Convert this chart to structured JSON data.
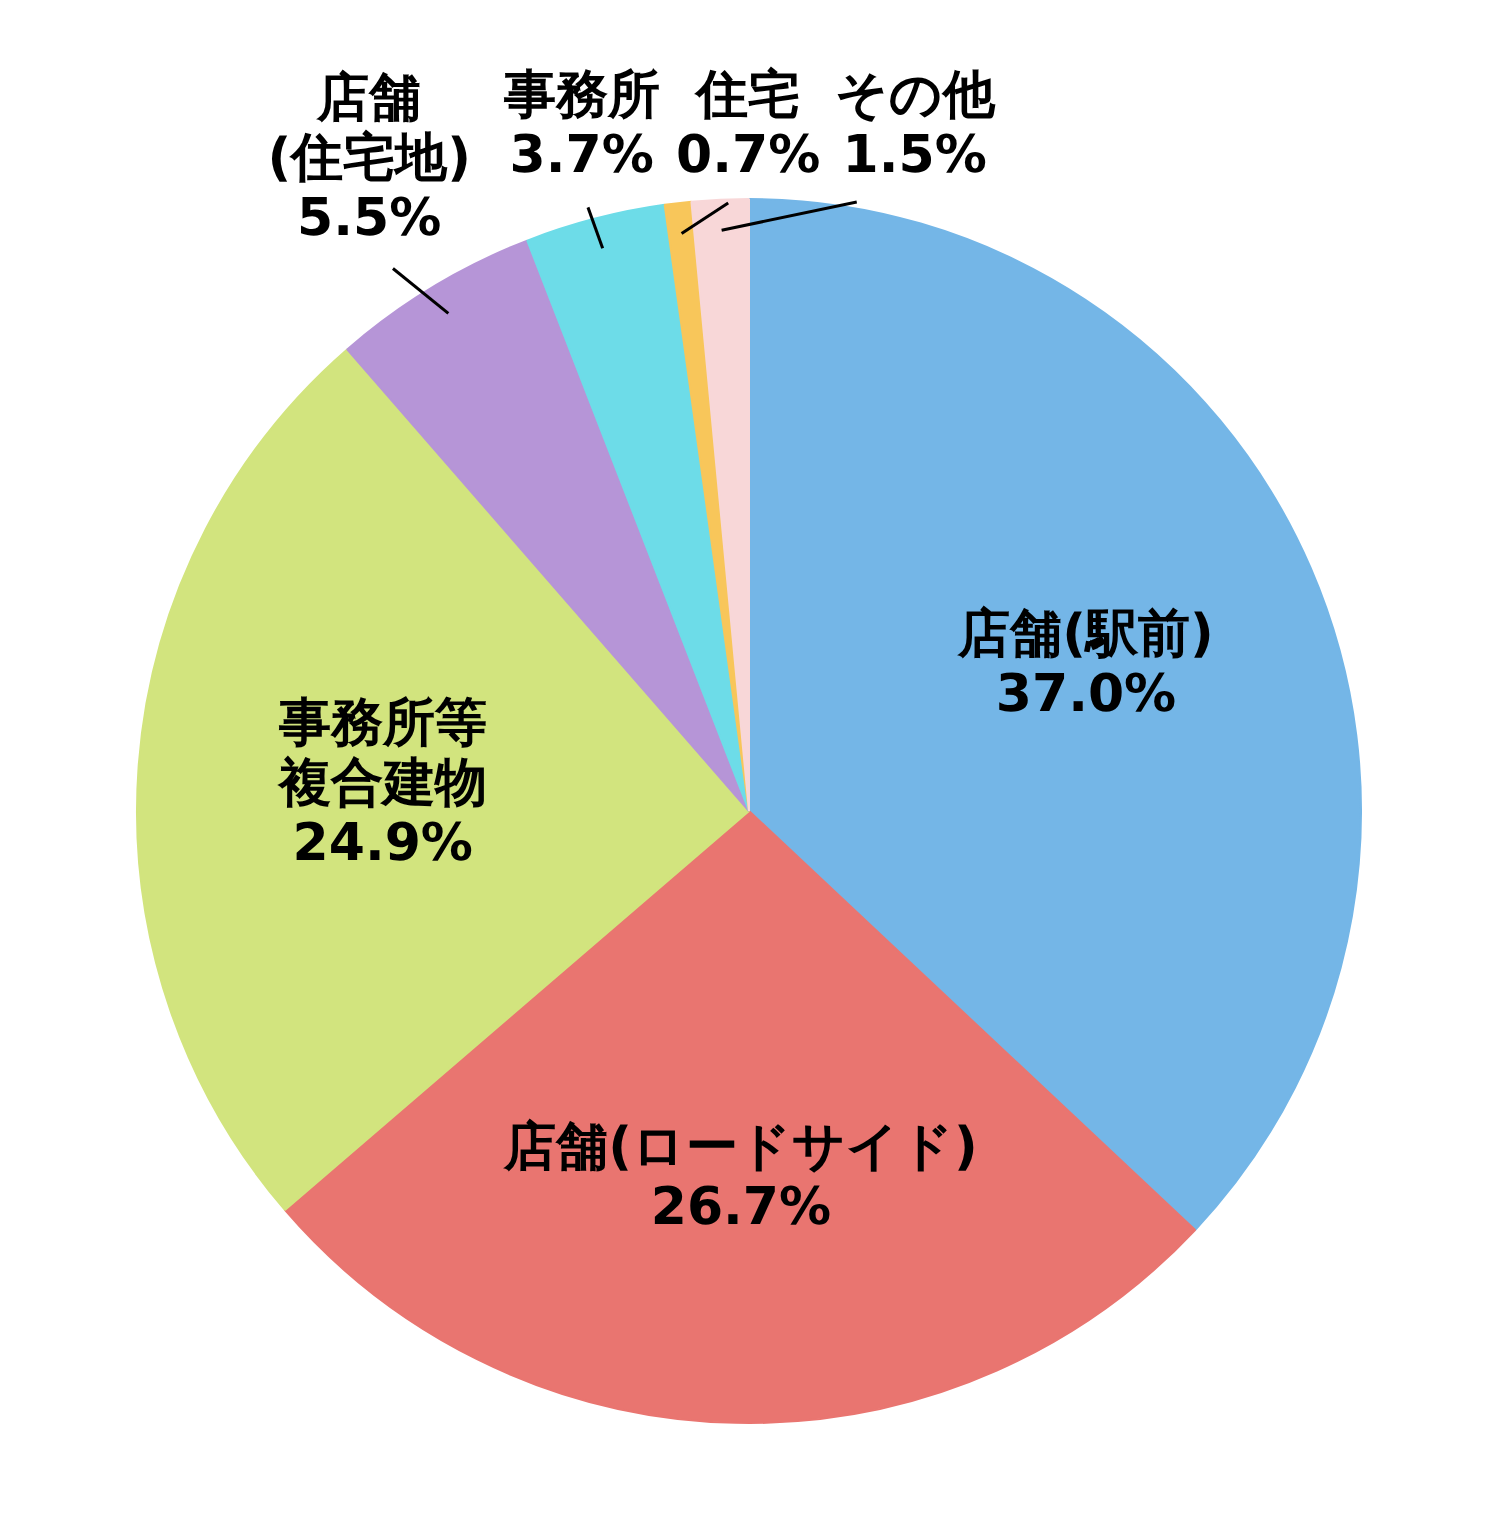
{
  "chart_data": {
    "type": "pie",
    "categories": [
      "店舗(駅前)",
      "店舗(ロードサイド)",
      "事務所等複合建物",
      "店舗(住宅地)",
      "事務所",
      "住宅",
      "その他"
    ],
    "values": [
      37.0,
      26.7,
      24.9,
      5.5,
      3.7,
      0.7,
      1.5
    ],
    "colors": [
      "#74b6e7",
      "#e97570",
      "#d2e47e",
      "#b695d7",
      "#6ddce8",
      "#f8c65a",
      "#f8d7d8"
    ],
    "value_labels": [
      "37.0%",
      "26.7%",
      "24.9%",
      "5.5%",
      "3.7%",
      "0.7%",
      "1.5%"
    ]
  }
}
